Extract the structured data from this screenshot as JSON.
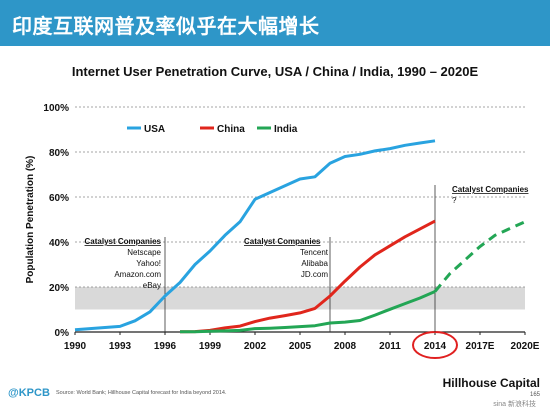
{
  "header": {
    "title": "印度互联网普及率似乎在大幅增长"
  },
  "footer": {
    "logo": "@KPCB",
    "source": "Source: World Bank; Hillhouse Capital forecast for India beyond 2014.",
    "brand": "Hillhouse Capital",
    "page": "165",
    "watermark": "sina 新浪科技"
  },
  "colors": {
    "header": "#2e96c8",
    "usa": "#29a3e0",
    "china": "#e0261c",
    "india": "#23a655",
    "band": "#d9d9d9",
    "highlight_circle": "#e02020"
  },
  "chart_data": {
    "type": "line",
    "title": "Internet User Penetration Curve, USA / China / India, 1990 – 2020E",
    "xlabel": "",
    "ylabel": "Population Penetration (%)",
    "xlim": [
      1990,
      2020
    ],
    "ylim": [
      0,
      100
    ],
    "x_ticks": [
      "1990",
      "1993",
      "1996",
      "1999",
      "2002",
      "2005",
      "2008",
      "2011",
      "2014",
      "2017E",
      "2020E"
    ],
    "y_ticks": [
      "0%",
      "20%",
      "40%",
      "60%",
      "80%",
      "100%"
    ],
    "grid": true,
    "legend_position": "top-left",
    "highlighted_tick": "2014",
    "shaded_band": [
      10,
      20
    ],
    "series": [
      {
        "name": "USA",
        "x": [
          1990,
          1991,
          1992,
          1993,
          1994,
          1995,
          1996,
          1997,
          1998,
          1999,
          2000,
          2001,
          2002,
          2003,
          2004,
          2005,
          2006,
          2007,
          2008,
          2009,
          2010,
          2011,
          2012,
          2013,
          2014
        ],
        "y": [
          1,
          1.5,
          2,
          2.5,
          5,
          9,
          16,
          22,
          30,
          36,
          43,
          49,
          59,
          62,
          65,
          68,
          69,
          75,
          78,
          79,
          80.5,
          81.5,
          83,
          84,
          85
        ]
      },
      {
        "name": "China",
        "x": [
          1997,
          1998,
          1999,
          2000,
          2001,
          2002,
          2003,
          2004,
          2005,
          2006,
          2007,
          2008,
          2009,
          2010,
          2011,
          2012,
          2013,
          2014
        ],
        "y": [
          0.1,
          0.2,
          0.7,
          1.8,
          2.6,
          4.6,
          6.2,
          7.3,
          8.5,
          10.5,
          16,
          22.6,
          28.9,
          34.3,
          38.3,
          42.3,
          45.8,
          49.3
        ]
      },
      {
        "name": "India",
        "x": [
          1997,
          1998,
          1999,
          2000,
          2001,
          2002,
          2003,
          2004,
          2005,
          2006,
          2007,
          2008,
          2009,
          2010,
          2011,
          2012,
          2013,
          2014
        ],
        "y": [
          0.1,
          0.1,
          0.3,
          0.5,
          0.7,
          1.5,
          1.7,
          2,
          2.4,
          2.8,
          4,
          4.4,
          5.1,
          7.5,
          10.1,
          12.6,
          15.1,
          18
        ],
        "forecast_x": [
          2014,
          2015,
          2016,
          2017,
          2018,
          2019,
          2020
        ],
        "forecast_y": [
          18,
          26,
          32,
          38,
          43,
          46,
          49
        ]
      }
    ],
    "annotations": [
      {
        "title": "Catalyst Companies",
        "lines": [
          "Netscape",
          "Yahoo!",
          "Amazon.com",
          "eBay"
        ],
        "year": 1996,
        "align": "right"
      },
      {
        "title": "Catalyst Companies",
        "lines": [
          "Tencent",
          "Alibaba",
          "JD.com"
        ],
        "year": 2007,
        "align": "left"
      },
      {
        "title": "Catalyst Companies",
        "lines": [
          "?"
        ],
        "year": 2014,
        "align": "left"
      }
    ]
  }
}
